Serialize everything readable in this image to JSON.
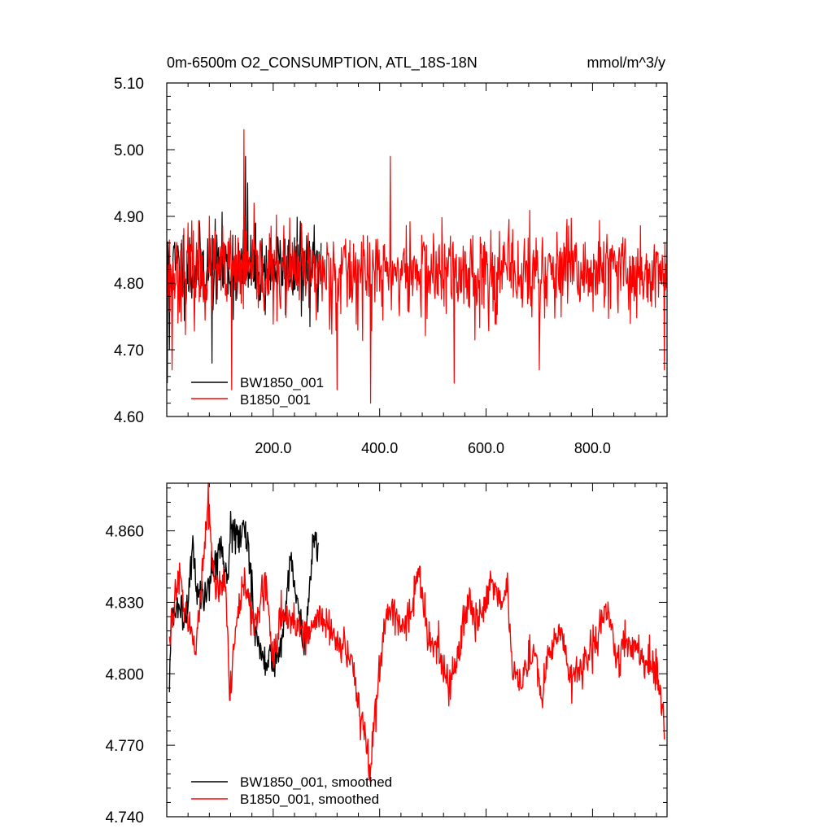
{
  "chart_data": [
    {
      "type": "line",
      "title": "0m-6500m O2_CONSUMPTION, ATL_18S-18N",
      "units": "mmol/m^3/y",
      "xlim": [
        0,
        940
      ],
      "ylim": [
        4.6,
        5.1
      ],
      "x_ticks": [
        200,
        400,
        600,
        800
      ],
      "x_tick_labels": [
        "200.0",
        "400.0",
        "600.0",
        "800.0"
      ],
      "y_ticks": [
        4.6,
        4.7,
        4.8,
        4.9,
        5.0,
        5.1
      ],
      "y_tick_labels": [
        "4.60",
        "4.70",
        "4.80",
        "4.90",
        "5.00",
        "5.10"
      ],
      "legend": "bottom-left",
      "series": [
        {
          "name": "BW1850_001",
          "color": "#000000",
          "x_start": 1,
          "x_step": 1,
          "n": 290,
          "mean": 4.822,
          "noise": 0.05,
          "seed": 11,
          "anchors": [
            [
              1,
              4.65
            ],
            [
              5,
              4.7
            ],
            [
              85,
              4.68
            ],
            [
              120,
              4.78
            ],
            [
              148,
              4.99
            ],
            [
              152,
              4.95
            ],
            [
              285,
              4.8
            ],
            [
              290,
              4.86
            ]
          ]
        },
        {
          "name": "B1850_001",
          "color": "#ff0000",
          "x_start": 1,
          "x_step": 1,
          "n": 940,
          "mean": 4.815,
          "noise": 0.055,
          "seed": 23,
          "anchors": [
            [
              1,
              4.78
            ],
            [
              10,
              4.67
            ],
            [
              122,
              4.64
            ],
            [
              145,
              5.03
            ],
            [
              320,
              4.64
            ],
            [
              383,
              4.62
            ],
            [
              420,
              4.99
            ],
            [
              540,
              4.65
            ],
            [
              700,
              4.67
            ],
            [
              935,
              4.67
            ],
            [
              940,
              4.88
            ]
          ]
        }
      ]
    },
    {
      "type": "line",
      "title": "",
      "xlim": [
        0,
        940
      ],
      "ylim": [
        4.74,
        4.88
      ],
      "y_ticks": [
        4.74,
        4.77,
        4.8,
        4.83,
        4.86
      ],
      "y_tick_labels": [
        "4.740",
        "4.770",
        "4.800",
        "4.830",
        "4.860"
      ],
      "legend": "bottom-left",
      "series": [
        {
          "name": "BW1850_001, smoothed",
          "color": "#000000",
          "x_start": 5,
          "x_step": 1,
          "n": 281,
          "noise": 0.004,
          "seed": 5,
          "anchors": [
            [
              5,
              4.793
            ],
            [
              8,
              4.82
            ],
            [
              20,
              4.83
            ],
            [
              35,
              4.825
            ],
            [
              48,
              4.853
            ],
            [
              55,
              4.838
            ],
            [
              70,
              4.83
            ],
            [
              85,
              4.843
            ],
            [
              100,
              4.855
            ],
            [
              115,
              4.84
            ],
            [
              120,
              4.866
            ],
            [
              135,
              4.855
            ],
            [
              145,
              4.86
            ],
            [
              155,
              4.85
            ],
            [
              165,
              4.82
            ],
            [
              180,
              4.808
            ],
            [
              200,
              4.806
            ],
            [
              215,
              4.812
            ],
            [
              225,
              4.83
            ],
            [
              232,
              4.85
            ],
            [
              245,
              4.832
            ],
            [
              258,
              4.81
            ],
            [
              270,
              4.84
            ],
            [
              278,
              4.858
            ],
            [
              285,
              4.85
            ]
          ]
        },
        {
          "name": "B1850_001, smoothed",
          "color": "#ff0000",
          "x_start": 5,
          "x_step": 1,
          "n": 931,
          "noise": 0.004,
          "seed": 9,
          "anchors": [
            [
              5,
              4.81
            ],
            [
              15,
              4.835
            ],
            [
              25,
              4.84
            ],
            [
              40,
              4.82
            ],
            [
              55,
              4.81
            ],
            [
              70,
              4.85
            ],
            [
              78,
              4.87
            ],
            [
              90,
              4.835
            ],
            [
              110,
              4.84
            ],
            [
              118,
              4.79
            ],
            [
              130,
              4.82
            ],
            [
              145,
              4.84
            ],
            [
              165,
              4.82
            ],
            [
              185,
              4.84
            ],
            [
              200,
              4.805
            ],
            [
              215,
              4.825
            ],
            [
              240,
              4.822
            ],
            [
              260,
              4.815
            ],
            [
              285,
              4.825
            ],
            [
              300,
              4.82
            ],
            [
              320,
              4.815
            ],
            [
              350,
              4.805
            ],
            [
              365,
              4.78
            ],
            [
              375,
              4.77
            ],
            [
              382,
              4.758
            ],
            [
              392,
              4.785
            ],
            [
              405,
              4.815
            ],
            [
              420,
              4.83
            ],
            [
              440,
              4.82
            ],
            [
              460,
              4.825
            ],
            [
              473,
              4.845
            ],
            [
              490,
              4.815
            ],
            [
              510,
              4.81
            ],
            [
              530,
              4.795
            ],
            [
              550,
              4.81
            ],
            [
              570,
              4.835
            ],
            [
              580,
              4.82
            ],
            [
              595,
              4.825
            ],
            [
              610,
              4.84
            ],
            [
              625,
              4.83
            ],
            [
              640,
              4.835
            ],
            [
              650,
              4.8
            ],
            [
              665,
              4.795
            ],
            [
              690,
              4.81
            ],
            [
              705,
              4.79
            ],
            [
              715,
              4.805
            ],
            [
              740,
              4.82
            ],
            [
              760,
              4.795
            ],
            [
              775,
              4.805
            ],
            [
              800,
              4.81
            ],
            [
              820,
              4.825
            ],
            [
              830,
              4.83
            ],
            [
              845,
              4.805
            ],
            [
              860,
              4.815
            ],
            [
              880,
              4.81
            ],
            [
              900,
              4.805
            ],
            [
              920,
              4.8
            ],
            [
              935,
              4.78
            ]
          ]
        }
      ]
    }
  ]
}
